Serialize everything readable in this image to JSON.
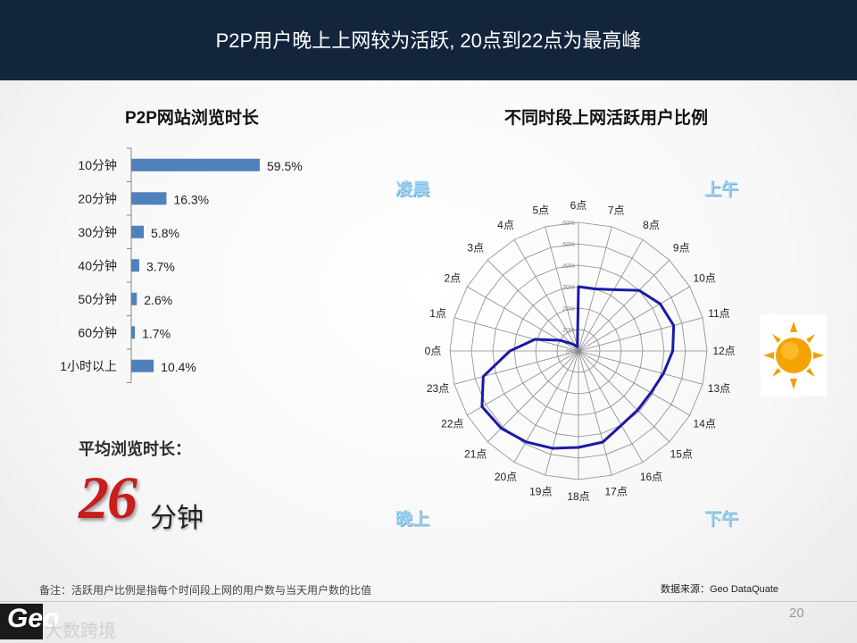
{
  "header": {
    "title": "P2P用户晚上上网较为活跃, 20点到22点为最高峰"
  },
  "left_panel": {
    "title": "P2P网站浏览时长",
    "avg_label": "平均浏览时长：",
    "avg_value": "26",
    "avg_unit": "分钟"
  },
  "right_panel": {
    "title": "不同时段上网活跃用户比例",
    "corner_labels": {
      "top_left": "凌晨",
      "top_right": "上午",
      "bottom_left": "晚上",
      "bottom_right": "下午"
    }
  },
  "footer": {
    "note": "备注：活跃用户比例是指每个时间段上网的用户数与当天用户数的比值",
    "source": "数据来源：Geo DataQuate",
    "page_number": "20",
    "logo_text": "Geo",
    "logo_sub": "大数跨境"
  },
  "colors": {
    "bar": "#4f81bd",
    "radar_line": "#1a1aa6",
    "header": "#13253d",
    "accent_red": "#c81e1e"
  },
  "chart_data": [
    {
      "type": "bar",
      "orientation": "horizontal",
      "title": "P2P网站浏览时长",
      "categories": [
        "10分钟",
        "20分钟",
        "30分钟",
        "40分钟",
        "50分钟",
        "60分钟",
        "1小时以上"
      ],
      "values": [
        59.5,
        16.3,
        5.8,
        3.7,
        2.6,
        1.7,
        10.4
      ],
      "value_labels": [
        "59.5%",
        "16.3%",
        "5.8%",
        "3.7%",
        "2.6%",
        "1.7%",
        "10.4%"
      ],
      "unit": "%"
    },
    {
      "type": "radar",
      "title": "不同时段上网活跃用户比例",
      "categories": [
        "6点",
        "7点",
        "8点",
        "9点",
        "10点",
        "11点",
        "12点",
        "13点",
        "14点",
        "15点",
        "16点",
        "17点",
        "18点",
        "19点",
        "20点",
        "21点",
        "22点",
        "23点",
        "0点",
        "1点",
        "2点",
        "3点",
        "4点",
        "5点"
      ],
      "values": [
        30,
        30,
        33,
        40,
        44,
        46,
        44,
        41,
        39,
        39,
        40,
        44,
        45,
        47,
        49,
        51,
        52,
        46,
        32,
        21,
        10,
        5,
        3,
        2
      ],
      "ylim": [
        0,
        60
      ],
      "tick_labels": [
        "0%",
        "10%",
        "20%",
        "30%",
        "40%",
        "50%",
        "60%"
      ],
      "grid": true
    }
  ]
}
